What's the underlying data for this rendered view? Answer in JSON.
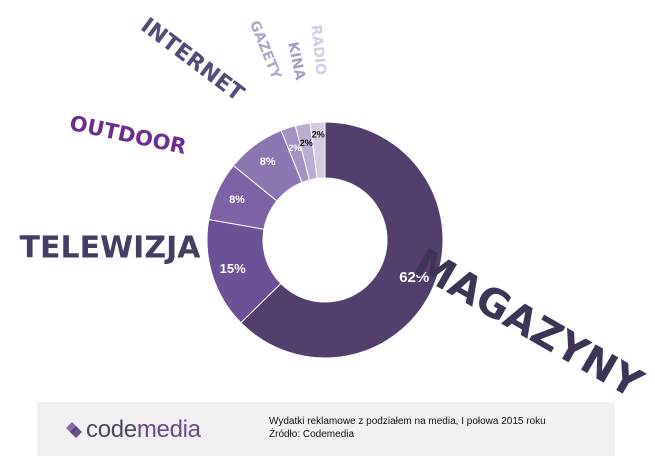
{
  "chart_data": {
    "type": "pie",
    "donut": true,
    "slices": [
      {
        "label": "MAGAZYNY",
        "value": 62,
        "value_label": "62%",
        "color": "#523f6c"
      },
      {
        "label": "TELEWIZJA",
        "value": 15,
        "value_label": "15%",
        "color": "#6b5296"
      },
      {
        "label": "OUTDOOR",
        "value": 8,
        "value_label": "8%",
        "color": "#7d63a6"
      },
      {
        "label": "INTERNET",
        "value": 8,
        "value_label": "8%",
        "color": "#8c76b2"
      },
      {
        "label": "GAZETY",
        "value": 2,
        "value_label": "2%",
        "color": "#a492c0"
      },
      {
        "label": "KINA",
        "value": 2,
        "value_label": "2%",
        "color": "#bbadd1"
      },
      {
        "label": "RADIO",
        "value": 2,
        "value_label": "2%",
        "color": "#d4cbe0"
      }
    ]
  },
  "footer": {
    "logo": {
      "part1": "code",
      "part2": "media"
    },
    "caption_line1": "Wydatki reklamowe z podziałem na media, I połowa 2015 roku",
    "caption_line2": "Źródło: Codemedia"
  }
}
